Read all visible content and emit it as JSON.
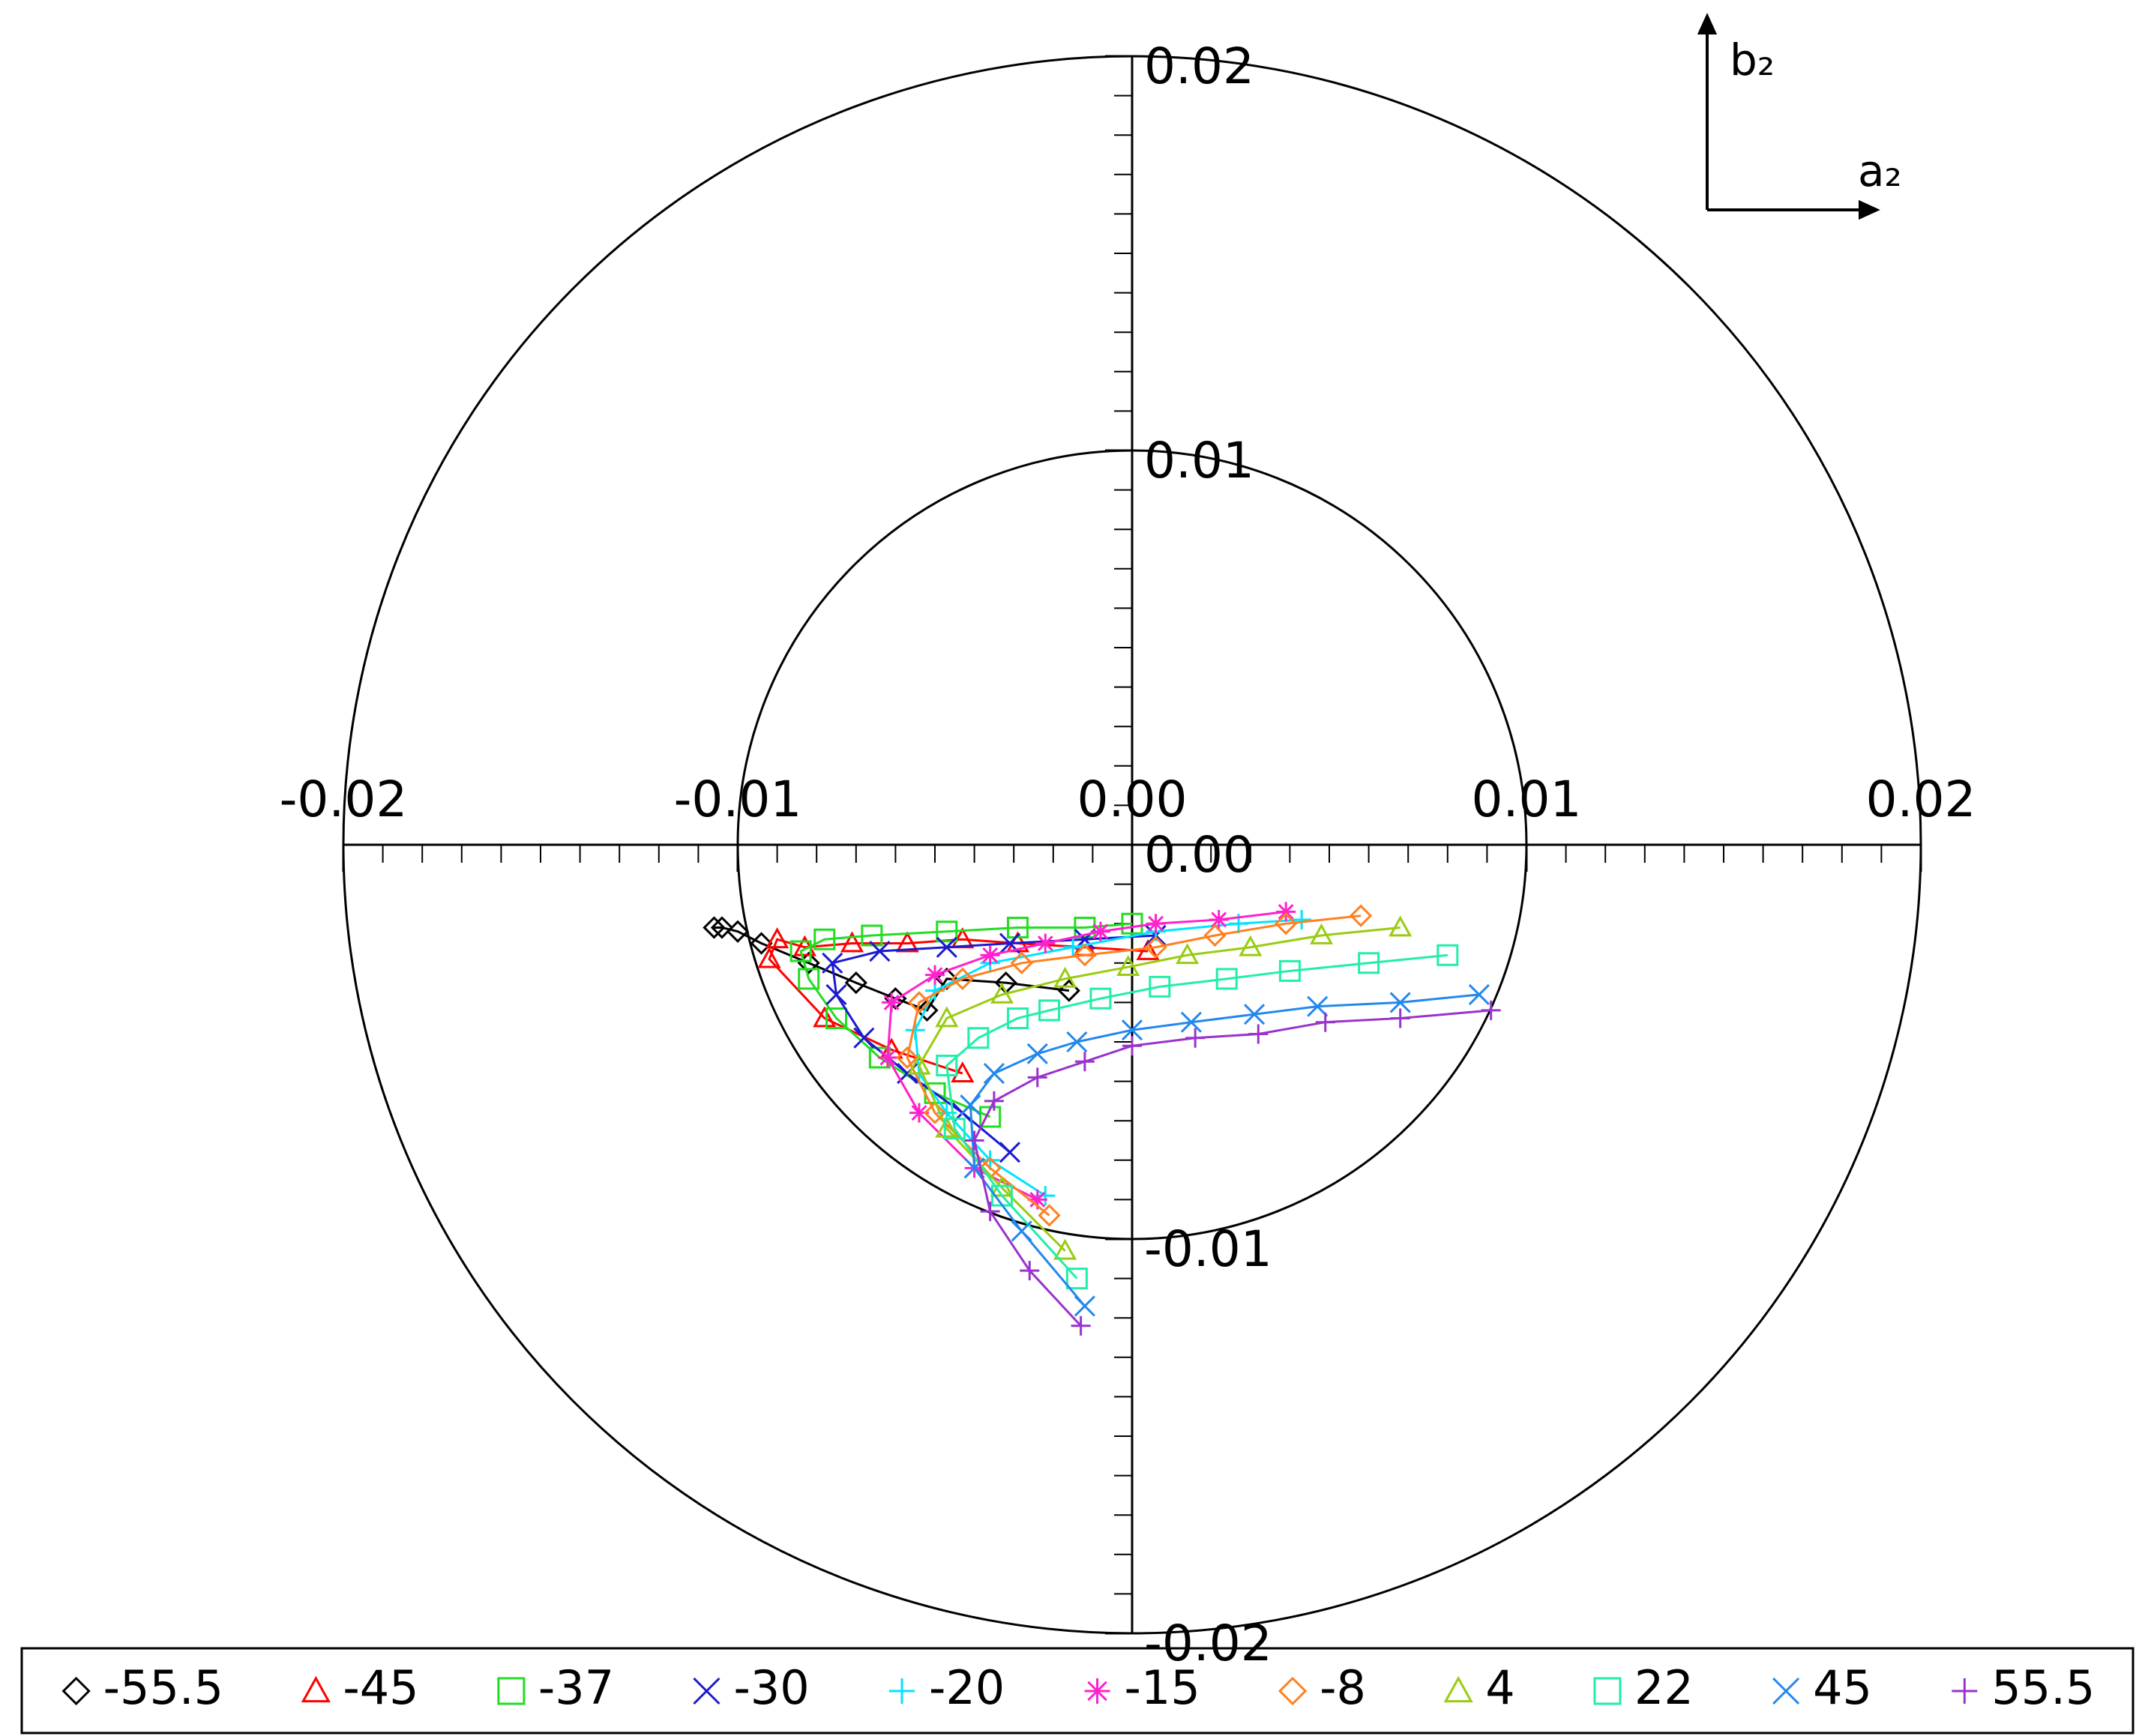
{
  "chart_data": {
    "type": "line",
    "xlabel": "a₂",
    "ylabel": "b₂",
    "xlim": [
      -0.02,
      0.02
    ],
    "ylim": [
      -0.02,
      0.02
    ],
    "xticks": [
      -0.02,
      -0.01,
      {
        "value": 0,
        "label": "0.00"
      },
      0.01,
      0.02
    ],
    "yticks": [
      0.02,
      0.01,
      {
        "value": 0,
        "label": "0.00"
      },
      -0.01,
      -0.02
    ],
    "grid": true,
    "legend": "bottom",
    "series": [
      {
        "name": "-55.5",
        "color": "#000000",
        "marker": "diamond",
        "x": [
          -0.0106,
          -0.0104,
          -0.01,
          -0.0094,
          -0.0082,
          -0.007,
          -0.006,
          -0.0052,
          -0.0047,
          -0.0032,
          -0.0016
        ],
        "y": [
          -0.0021,
          -0.0021,
          -0.0022,
          -0.0025,
          -0.003,
          -0.0035,
          -0.0039,
          -0.0042,
          -0.0034,
          -0.0035,
          -0.0037
        ]
      },
      {
        "name": "-45",
        "color": "#ff0000",
        "marker": "triangle",
        "x": [
          0.0004,
          -0.0012,
          -0.0029,
          -0.0043,
          -0.0057,
          -0.0071,
          -0.0083,
          -0.009,
          -0.0092,
          -0.0078,
          -0.0061,
          -0.0043
        ],
        "y": [
          -0.0027,
          -0.0026,
          -0.0025,
          -0.0024,
          -0.0025,
          -0.0025,
          -0.0026,
          -0.0024,
          -0.0029,
          -0.0044,
          -0.0052,
          -0.0058
        ]
      },
      {
        "name": "-37",
        "color": "#22dd22",
        "marker": "square",
        "x": [
          0.0,
          -0.0012,
          -0.0029,
          -0.0047,
          -0.0066,
          -0.0078,
          -0.0084,
          -0.0082,
          -0.0075,
          -0.0064,
          -0.005,
          -0.0036
        ],
        "y": [
          -0.002,
          -0.0021,
          -0.0021,
          -0.0022,
          -0.0023,
          -0.0024,
          -0.0027,
          -0.0034,
          -0.0044,
          -0.0054,
          -0.0063,
          -0.0069
        ]
      },
      {
        "name": "-30",
        "color": "#1a1ad0",
        "marker": "x",
        "x": [
          0.0006,
          -0.0012,
          -0.0031,
          -0.0047,
          -0.0064,
          -0.0076,
          -0.0075,
          -0.0068,
          -0.0057,
          -0.0043,
          -0.0031
        ],
        "y": [
          -0.0023,
          -0.0024,
          -0.0025,
          -0.0026,
          -0.0027,
          -0.003,
          -0.0038,
          -0.0049,
          -0.0058,
          -0.0068,
          -0.0078
        ]
      },
      {
        "name": "-20",
        "color": "#00e5ff",
        "marker": "plus",
        "x": [
          0.0043,
          0.0027,
          0.0006,
          -0.0015,
          -0.0036,
          -0.005,
          -0.0055,
          -0.0054,
          -0.0047,
          -0.0036,
          -0.0022
        ],
        "y": [
          -0.0019,
          -0.002,
          -0.0022,
          -0.0026,
          -0.003,
          -0.0037,
          -0.0047,
          -0.0058,
          -0.0068,
          -0.008,
          -0.0089
        ]
      },
      {
        "name": "-15",
        "color": "#ff22cc",
        "marker": "asterisk",
        "x": [
          0.0039,
          0.0022,
          0.0006,
          -0.0008,
          -0.0022,
          -0.0036,
          -0.005,
          -0.0061,
          -0.0062,
          -0.0054,
          -0.004,
          -0.0024
        ],
        "y": [
          -0.0017,
          -0.0019,
          -0.002,
          -0.0022,
          -0.0025,
          -0.0028,
          -0.0033,
          -0.004,
          -0.0054,
          -0.0068,
          -0.0082,
          -0.009
        ]
      },
      {
        "name": "-8",
        "color": "#ff8020",
        "marker": "diamond",
        "x": [
          0.0058,
          0.0039,
          0.0021,
          0.0006,
          -0.0012,
          -0.0028,
          -0.0043,
          -0.0054,
          -0.0057,
          -0.005,
          -0.0036,
          -0.0021
        ],
        "y": [
          -0.0018,
          -0.002,
          -0.0023,
          -0.0026,
          -0.0028,
          -0.003,
          -0.0034,
          -0.004,
          -0.0054,
          -0.0068,
          -0.0082,
          -0.0094
        ]
      },
      {
        "name": "4",
        "color": "#99cc11",
        "marker": "triangle",
        "x": [
          0.0068,
          0.0048,
          0.003,
          0.0014,
          -0.0001,
          -0.0017,
          -0.0033,
          -0.0047,
          -0.0054,
          -0.0047,
          -0.0033,
          -0.0017
        ],
        "y": [
          -0.0021,
          -0.0023,
          -0.0026,
          -0.0028,
          -0.0031,
          -0.0034,
          -0.0038,
          -0.0044,
          -0.0056,
          -0.0072,
          -0.0087,
          -0.0103
        ]
      },
      {
        "name": "22",
        "color": "#22eeaa",
        "marker": "square",
        "x": [
          0.008,
          0.006,
          0.004,
          0.0024,
          0.0007,
          -0.0008,
          -0.0021,
          -0.0029,
          -0.0039,
          -0.0047,
          -0.0045,
          -0.0033,
          -0.0014
        ],
        "y": [
          -0.0028,
          -0.003,
          -0.0032,
          -0.0034,
          -0.0036,
          -0.0039,
          -0.0042,
          -0.0044,
          -0.0049,
          -0.0056,
          -0.0072,
          -0.0089,
          -0.011
        ]
      },
      {
        "name": "45",
        "color": "#2288ee",
        "marker": "x",
        "x": [
          0.0088,
          0.0068,
          0.0047,
          0.0031,
          0.0015,
          0,
          -0.0014,
          -0.0024,
          -0.0035,
          -0.0041,
          -0.004,
          -0.0028,
          -0.0012
        ],
        "y": [
          -0.0038,
          -0.004,
          -0.0041,
          -0.0043,
          -0.0045,
          -0.0047,
          -0.005,
          -0.0053,
          -0.0058,
          -0.0066,
          -0.0082,
          -0.0098,
          -0.0117
        ]
      },
      {
        "name": "55.5",
        "color": "#9933cc",
        "marker": "plus",
        "x": [
          0.0091,
          0.0068,
          0.0049,
          0.0032,
          0.0016,
          0,
          -0.0012,
          -0.0024,
          -0.0035,
          -0.004,
          -0.0036,
          -0.0026,
          -0.0013
        ],
        "y": [
          -0.0042,
          -0.0044,
          -0.0045,
          -0.0048,
          -0.0049,
          -0.0051,
          -0.0055,
          -0.0059,
          -0.0065,
          -0.0075,
          -0.0093,
          -0.0108,
          -0.0122
        ]
      }
    ]
  }
}
